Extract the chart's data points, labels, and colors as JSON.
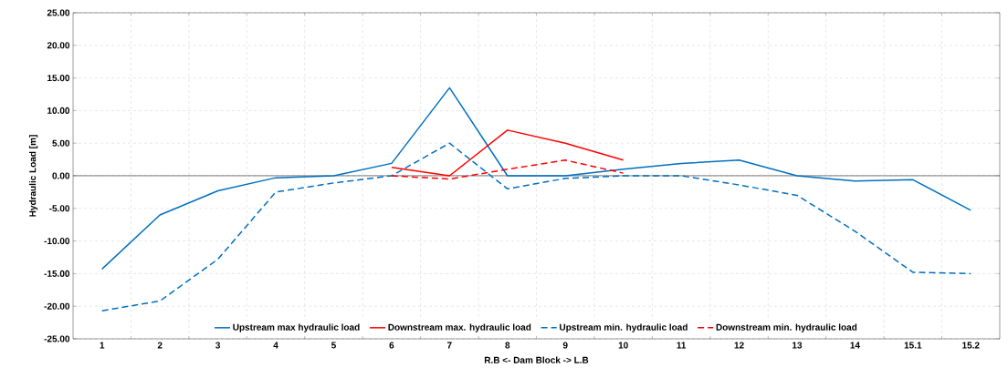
{
  "chart_data": {
    "type": "line",
    "xlabel": "R.B     <-     Dam Block     ->     L.B",
    "ylabel": "Hydraulic Load [m]",
    "categories": [
      "1",
      "2",
      "3",
      "4",
      "5",
      "6",
      "7",
      "8",
      "9",
      "10",
      "11",
      "12",
      "13",
      "14",
      "15.1",
      "15.2"
    ],
    "series": [
      {
        "name": "Upstream max hydraulic load",
        "color": "#0070c0",
        "line_style": "solid",
        "values": [
          -14.3,
          -6,
          -2.3,
          -0.3,
          0,
          1.9,
          13.5,
          0,
          0,
          1,
          1.9,
          2.4,
          0,
          -0.8,
          -0.6,
          -5.3
        ]
      },
      {
        "name": "Downstream max. hydraulic load",
        "color": "#ff0000",
        "line_style": "solid",
        "values": [
          null,
          null,
          null,
          null,
          null,
          1.3,
          0,
          7,
          5,
          2.4,
          null,
          null,
          null,
          null,
          null,
          null
        ]
      },
      {
        "name": "Upstream min. hydraulic load",
        "color": "#0070c0",
        "line_style": "dashed",
        "values": [
          -20.7,
          -19.2,
          -12.8,
          -2.5,
          -1.1,
          0,
          5,
          -2,
          -0.4,
          0,
          0,
          -1.4,
          -3,
          -8.5,
          -14.8,
          -15
        ]
      },
      {
        "name": "Downstream min. hydraulic load",
        "color": "#ff0000",
        "line_style": "dashed",
        "values": [
          null,
          null,
          null,
          null,
          null,
          0,
          -0.5,
          1,
          2.4,
          0.4,
          null,
          null,
          null,
          null,
          null,
          null
        ]
      }
    ],
    "ylim": [
      -25,
      25
    ],
    "yticks": [
      {
        "value": -25,
        "label": "-25.00"
      },
      {
        "value": -20,
        "label": "-20.00"
      },
      {
        "value": -15,
        "label": "-15.00"
      },
      {
        "value": -10,
        "label": "-10.00"
      },
      {
        "value": -5,
        "label": "-5.00"
      },
      {
        "value": 0,
        "label": "0.00"
      },
      {
        "value": 5,
        "label": "5.00"
      },
      {
        "value": 10,
        "label": "10.00"
      },
      {
        "value": 15,
        "label": "15.00"
      },
      {
        "value": 20,
        "label": "20.00"
      },
      {
        "value": 25,
        "label": "25.00"
      }
    ],
    "ref_lines": [
      {
        "axis": "y",
        "value": 0,
        "color": "#404040"
      }
    ],
    "grid": true,
    "legend": "bottom",
    "marker": "none"
  }
}
